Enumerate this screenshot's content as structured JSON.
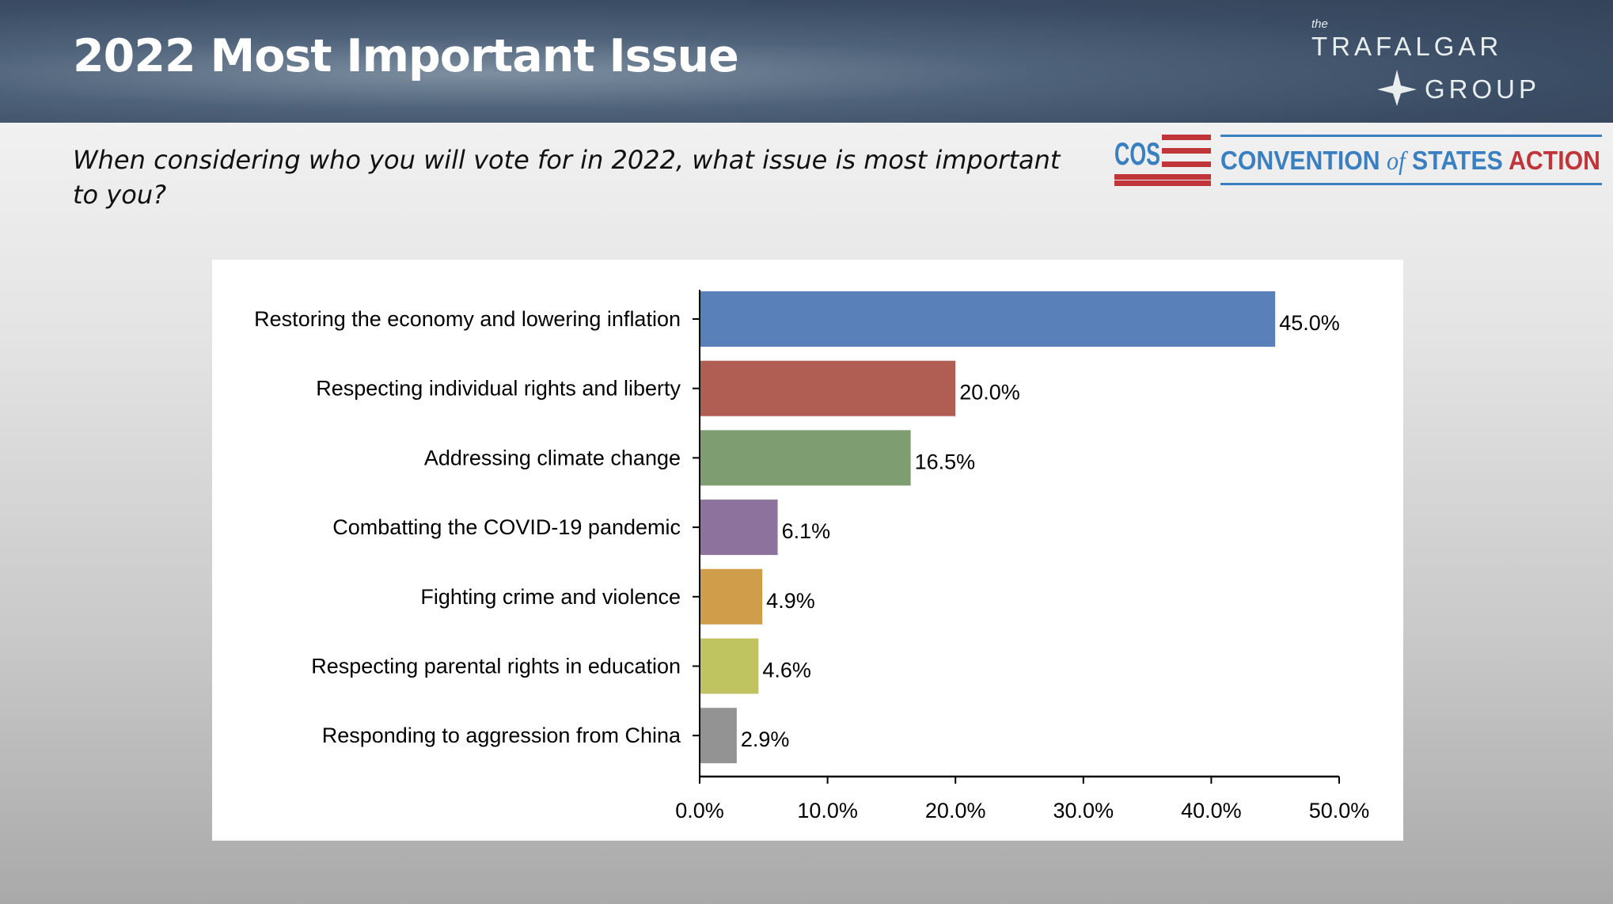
{
  "header": {
    "title": "2022 Most Important Issue",
    "logo_trafalgar": {
      "the": "the",
      "line1": "TRAFALGAR",
      "line2": "GROUP"
    }
  },
  "question": "When considering who you will vote for in 2022, what issue is most important to you?",
  "logo_cos": {
    "mark": "COS",
    "text_a": "CONVENTION",
    "text_of": "of",
    "text_b": "STATES",
    "text_c": "ACTION",
    "blue": "#3a7fc0",
    "red": "#c0353a"
  },
  "chart_data": {
    "type": "bar",
    "orientation": "horizontal",
    "categories": [
      "Restoring the economy and lowering inflation",
      "Respecting individual rights and liberty",
      "Addressing climate change",
      "Combatting the COVID-19 pandemic",
      "Fighting crime and violence",
      "Respecting parental rights in education",
      "Responding to aggression from China"
    ],
    "values": [
      45.0,
      20.0,
      16.5,
      6.1,
      4.9,
      4.6,
      2.9
    ],
    "value_labels": [
      "45.0%",
      "20.0%",
      "16.5%",
      "6.1%",
      "4.9%",
      "4.6%",
      "2.9%"
    ],
    "colors": [
      "#5a80b9",
      "#b05e54",
      "#7e9e71",
      "#8d729e",
      "#d09d4b",
      "#bfc360",
      "#939393"
    ],
    "xlim": [
      0,
      50
    ],
    "xticks": [
      0,
      10,
      20,
      30,
      40,
      50
    ],
    "xtick_labels": [
      "0.0%",
      "10.0%",
      "20.0%",
      "30.0%",
      "40.0%",
      "50.0%"
    ],
    "grid": false,
    "legend": "none"
  }
}
